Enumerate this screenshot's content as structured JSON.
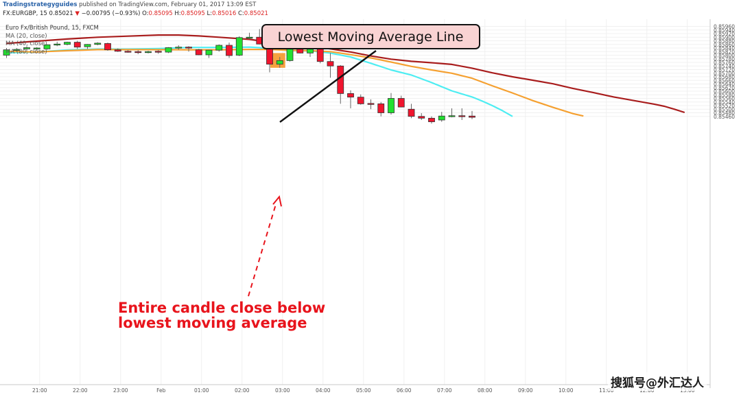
{
  "header": {
    "publisher": "Tradingstrategyguides",
    "published_text": "published on TradingView.com, February 01, 2017 13:09 EST",
    "symbol_info": "FX:EURGBP, 15",
    "last_price": "0.85021",
    "change": "−0.00795 (−0.93%)",
    "ohlc_open_label": "O:",
    "ohlc_open": "0.85095",
    "ohlc_high_label": "H:",
    "ohlc_high": "0.85095",
    "ohlc_low_label": "L:",
    "ohlc_low": "0.85016",
    "ohlc_close_label": "C:",
    "ohlc_close": "0.85021"
  },
  "legend": {
    "title": "Euro Fx/British Pound, 15, FXCM",
    "ma1": "MA (20, close)",
    "ma2": "MA (40, close)",
    "ma3": "MA (80, close)"
  },
  "colors": {
    "up": "#22e030",
    "down": "#f0152e",
    "ma20": "#4dedf2",
    "ma40": "#f5a030",
    "ma80": "#a81c1c",
    "highlight": "#f5921e",
    "callout_fill": "#f9d3d3",
    "annotation_red": "#e8141c"
  },
  "watermark": "搜狐号@外汇达人",
  "chart_data": {
    "type": "candlestick",
    "ylim": [
      0.8546,
      0.8597
    ],
    "y_ticks": [
      "0.85960",
      "0.85940",
      "0.85920",
      "0.85900",
      "0.85880",
      "0.85860",
      "0.85840",
      "0.85820",
      "0.85800",
      "0.85780",
      "0.85760",
      "0.85740",
      "0.85720",
      "0.85700",
      "0.85680",
      "0.85660",
      "0.85640",
      "0.85620",
      "0.85600",
      "0.85580",
      "0.85560",
      "0.85540",
      "0.85520",
      "0.85500",
      "0.85480",
      "0.85460"
    ],
    "x_ticks": [
      {
        "label": "21:00",
        "bar": 3
      },
      {
        "label": "22:00",
        "bar": 7
      },
      {
        "label": "23:00",
        "bar": 11
      },
      {
        "label": "Feb",
        "bar": 15
      },
      {
        "label": "01:00",
        "bar": 19
      },
      {
        "label": "02:00",
        "bar": 23
      },
      {
        "label": "03:00",
        "bar": 27
      },
      {
        "label": "04:00",
        "bar": 31
      },
      {
        "label": "05:00",
        "bar": 35
      },
      {
        "label": "06:00",
        "bar": 39
      },
      {
        "label": "07:00",
        "bar": 43
      },
      {
        "label": "08:00",
        "bar": 47
      },
      {
        "label": "09:00",
        "bar": 51
      },
      {
        "label": "10:00",
        "bar": 55
      },
      {
        "label": "11:00",
        "bar": 59
      },
      {
        "label": "12:00",
        "bar": 63
      },
      {
        "label": "13:00",
        "bar": 67
      }
    ],
    "candles": [
      {
        "o": 0.858,
        "h": 0.8584,
        "l": 0.85785,
        "c": 0.8583
      },
      {
        "o": 0.8583,
        "h": 0.8584,
        "l": 0.8582,
        "c": 0.85832
      },
      {
        "o": 0.85835,
        "h": 0.8585,
        "l": 0.8582,
        "c": 0.85842
      },
      {
        "o": 0.85838,
        "h": 0.85845,
        "l": 0.85828,
        "c": 0.8584
      },
      {
        "o": 0.85835,
        "h": 0.8586,
        "l": 0.8583,
        "c": 0.85858
      },
      {
        "o": 0.8586,
        "h": 0.85875,
        "l": 0.8585,
        "c": 0.85862
      },
      {
        "o": 0.8586,
        "h": 0.85875,
        "l": 0.85855,
        "c": 0.85872
      },
      {
        "o": 0.85872,
        "h": 0.8588,
        "l": 0.85835,
        "c": 0.85845
      },
      {
        "o": 0.85847,
        "h": 0.85862,
        "l": 0.85835,
        "c": 0.8586
      },
      {
        "o": 0.8586,
        "h": 0.85872,
        "l": 0.85855,
        "c": 0.85867
      },
      {
        "o": 0.85865,
        "h": 0.8587,
        "l": 0.85825,
        "c": 0.8583
      },
      {
        "o": 0.8583,
        "h": 0.85838,
        "l": 0.85818,
        "c": 0.85822
      },
      {
        "o": 0.85822,
        "h": 0.85828,
        "l": 0.85814,
        "c": 0.8582
      },
      {
        "o": 0.8582,
        "h": 0.85828,
        "l": 0.85806,
        "c": 0.85815
      },
      {
        "o": 0.85815,
        "h": 0.85825,
        "l": 0.8581,
        "c": 0.8582
      },
      {
        "o": 0.85822,
        "h": 0.85828,
        "l": 0.85808,
        "c": 0.85817
      },
      {
        "o": 0.85817,
        "h": 0.85845,
        "l": 0.85812,
        "c": 0.85842
      },
      {
        "o": 0.85842,
        "h": 0.85855,
        "l": 0.8583,
        "c": 0.85845
      },
      {
        "o": 0.85845,
        "h": 0.8585,
        "l": 0.8582,
        "c": 0.85843
      },
      {
        "o": 0.8583,
        "h": 0.85835,
        "l": 0.858,
        "c": 0.85802
      },
      {
        "o": 0.85802,
        "h": 0.8583,
        "l": 0.85785,
        "c": 0.85828
      },
      {
        "o": 0.85828,
        "h": 0.8586,
        "l": 0.8582,
        "c": 0.85855
      },
      {
        "o": 0.85855,
        "h": 0.8587,
        "l": 0.85785,
        "c": 0.85798
      },
      {
        "o": 0.858,
        "h": 0.85905,
        "l": 0.85795,
        "c": 0.85898
      },
      {
        "o": 0.85898,
        "h": 0.85925,
        "l": 0.8589,
        "c": 0.859
      },
      {
        "o": 0.859,
        "h": 0.85945,
        "l": 0.8586,
        "c": 0.85862
      },
      {
        "o": 0.85862,
        "h": 0.85865,
        "l": 0.85705,
        "c": 0.8575
      },
      {
        "o": 0.8575,
        "h": 0.8579,
        "l": 0.8573,
        "c": 0.8577
      },
      {
        "o": 0.8577,
        "h": 0.85855,
        "l": 0.85765,
        "c": 0.85848
      },
      {
        "o": 0.85848,
        "h": 0.85855,
        "l": 0.8581,
        "c": 0.85812
      },
      {
        "o": 0.85812,
        "h": 0.85848,
        "l": 0.8579,
        "c": 0.85842
      },
      {
        "o": 0.85842,
        "h": 0.85848,
        "l": 0.85755,
        "c": 0.85765
      },
      {
        "o": 0.85765,
        "h": 0.85812,
        "l": 0.85675,
        "c": 0.8574
      },
      {
        "o": 0.8574,
        "h": 0.85745,
        "l": 0.8553,
        "c": 0.85587
      },
      {
        "o": 0.85587,
        "h": 0.85605,
        "l": 0.85505,
        "c": 0.85567
      },
      {
        "o": 0.85567,
        "h": 0.85582,
        "l": 0.85525,
        "c": 0.8553
      },
      {
        "o": 0.85532,
        "h": 0.85555,
        "l": 0.855,
        "c": 0.8553
      },
      {
        "o": 0.8553,
        "h": 0.8554,
        "l": 0.8546,
        "c": 0.8548
      },
      {
        "o": 0.8548,
        "h": 0.8559,
        "l": 0.8547,
        "c": 0.8556
      },
      {
        "o": 0.8556,
        "h": 0.85575,
        "l": 0.8551,
        "c": 0.85512
      },
      {
        "o": 0.855,
        "h": 0.8553,
        "l": 0.8545,
        "c": 0.8546
      },
      {
        "o": 0.8546,
        "h": 0.85478,
        "l": 0.8544,
        "c": 0.8545
      },
      {
        "o": 0.8545,
        "h": 0.8546,
        "l": 0.8542,
        "c": 0.8543
      },
      {
        "o": 0.8544,
        "h": 0.85485,
        "l": 0.8543,
        "c": 0.85462
      },
      {
        "o": 0.85462,
        "h": 0.85505,
        "l": 0.85455,
        "c": 0.85464
      },
      {
        "o": 0.85464,
        "h": 0.85505,
        "l": 0.8544,
        "c": 0.85463
      },
      {
        "o": 0.85462,
        "h": 0.8549,
        "l": 0.85445,
        "c": 0.85455
      }
    ],
    "series": [
      {
        "name": "MA (20, close)",
        "points": [
          [
            0,
            0.85813
          ],
          [
            3,
            0.85818
          ],
          [
            6,
            0.85829
          ],
          [
            9,
            0.85834
          ],
          [
            12,
            0.85834
          ],
          [
            15,
            0.85837
          ],
          [
            18,
            0.85843
          ],
          [
            21,
            0.85843
          ],
          [
            24,
            0.85845
          ],
          [
            25,
            0.85842
          ],
          [
            26,
            0.85833
          ],
          [
            28,
            0.85826
          ],
          [
            30,
            0.85824
          ],
          [
            32,
            0.85812
          ],
          [
            34,
            0.8579
          ],
          [
            36,
            0.85755
          ],
          [
            38,
            0.85718
          ],
          [
            40,
            0.8569
          ],
          [
            42,
            0.85648
          ],
          [
            44,
            0.85602
          ],
          [
            46,
            0.85568
          ],
          [
            47,
            0.85545
          ],
          [
            48,
            0.8552
          ],
          [
            49,
            0.85492
          ],
          [
            50,
            0.8546
          ]
        ]
      },
      {
        "name": "MA (40, close)",
        "points": [
          [
            0,
            0.85821
          ],
          [
            3,
            0.85818
          ],
          [
            6,
            0.85825
          ],
          [
            9,
            0.85831
          ],
          [
            12,
            0.85831
          ],
          [
            15,
            0.85831
          ],
          [
            18,
            0.8583
          ],
          [
            21,
            0.8583
          ],
          [
            24,
            0.85832
          ],
          [
            26,
            0.85832
          ],
          [
            28,
            0.85827
          ],
          [
            30,
            0.85825
          ],
          [
            32,
            0.8582
          ],
          [
            34,
            0.85803
          ],
          [
            36,
            0.85785
          ],
          [
            38,
            0.85762
          ],
          [
            40,
            0.85738
          ],
          [
            42,
            0.85718
          ],
          [
            44,
            0.857
          ],
          [
            46,
            0.85672
          ],
          [
            48,
            0.8563
          ],
          [
            50,
            0.8559
          ],
          [
            52,
            0.85548
          ],
          [
            54,
            0.8551
          ],
          [
            56,
            0.85475
          ],
          [
            57,
            0.85462
          ]
        ]
      },
      {
        "name": "MA (80, close)",
        "points": [
          [
            0,
            0.85865
          ],
          [
            3,
            0.85878
          ],
          [
            6,
            0.8589
          ],
          [
            9,
            0.859
          ],
          [
            12,
            0.85906
          ],
          [
            15,
            0.85912
          ],
          [
            17,
            0.85912
          ],
          [
            19,
            0.85907
          ],
          [
            21,
            0.859
          ],
          [
            24,
            0.85888
          ],
          [
            26,
            0.85872
          ],
          [
            28,
            0.85862
          ],
          [
            30,
            0.8585
          ],
          [
            32,
            0.85835
          ],
          [
            34,
            0.85818
          ],
          [
            36,
            0.85796
          ],
          [
            38,
            0.85778
          ],
          [
            40,
            0.85766
          ],
          [
            42,
            0.85758
          ],
          [
            44,
            0.85749
          ],
          [
            46,
            0.85728
          ],
          [
            48,
            0.85702
          ],
          [
            50,
            0.8568
          ],
          [
            52,
            0.85661
          ],
          [
            54,
            0.85641
          ],
          [
            56,
            0.85615
          ],
          [
            58,
            0.85592
          ],
          [
            60,
            0.85568
          ],
          [
            62,
            0.85548
          ],
          [
            64,
            0.85528
          ],
          [
            65,
            0.85516
          ],
          [
            66,
            0.855
          ],
          [
            67,
            0.85482
          ]
        ]
      }
    ],
    "highlight_bars": [
      26,
      27
    ],
    "annotations": {
      "callout": "Lowest Moving Average Line",
      "note_line1": "Entire candle close below",
      "note_line2": "lowest moving average"
    }
  }
}
